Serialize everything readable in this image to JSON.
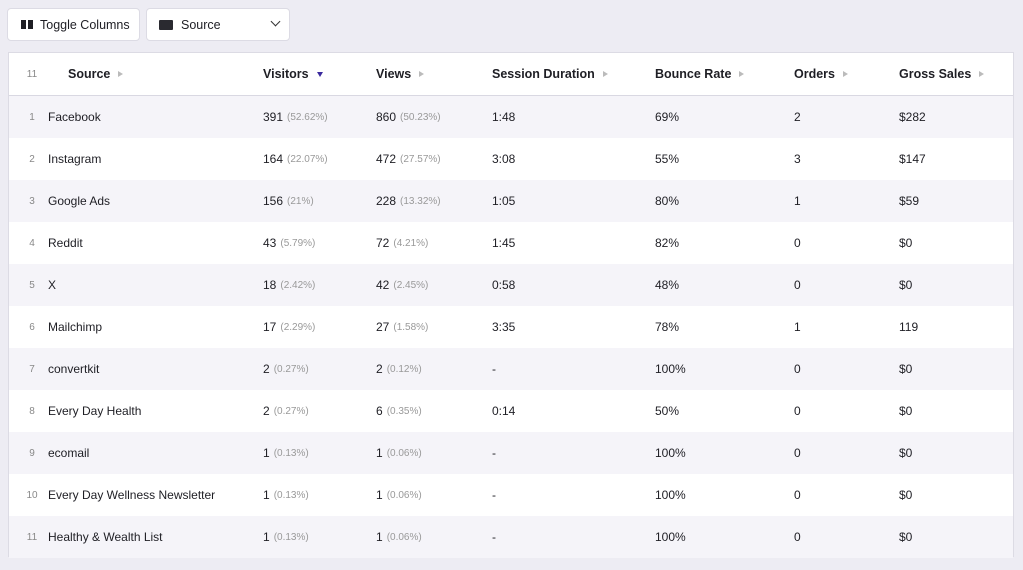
{
  "toolbar": {
    "toggle_columns_label": "Toggle Columns",
    "source_select_value": "Source"
  },
  "table": {
    "row_count": "11",
    "columns": [
      {
        "label": "Source",
        "sort": "none"
      },
      {
        "label": "Visitors",
        "sort": "desc"
      },
      {
        "label": "Views",
        "sort": "none"
      },
      {
        "label": "Session Duration",
        "sort": "none"
      },
      {
        "label": "Bounce Rate",
        "sort": "none"
      },
      {
        "label": "Orders",
        "sort": "none"
      },
      {
        "label": "Gross Sales",
        "sort": "none"
      }
    ],
    "rows": [
      {
        "index": "1",
        "source": "Facebook",
        "visitors": "391",
        "visitors_pct": "(52.62%)",
        "views": "860",
        "views_pct": "(50.23%)",
        "session": "1:48",
        "bounce": "69%",
        "orders": "2",
        "gross": "$282"
      },
      {
        "index": "2",
        "source": "Instagram",
        "visitors": "164",
        "visitors_pct": "(22.07%)",
        "views": "472",
        "views_pct": "(27.57%)",
        "session": "3:08",
        "bounce": "55%",
        "orders": "3",
        "gross": "$147"
      },
      {
        "index": "3",
        "source": "Google Ads",
        "visitors": "156",
        "visitors_pct": "(21%)",
        "views": "228",
        "views_pct": "(13.32%)",
        "session": "1:05",
        "bounce": "80%",
        "orders": "1",
        "gross": "$59"
      },
      {
        "index": "4",
        "source": "Reddit",
        "visitors": "43",
        "visitors_pct": "(5.79%)",
        "views": "72",
        "views_pct": "(4.21%)",
        "session": "1:45",
        "bounce": "82%",
        "orders": "0",
        "gross": "$0"
      },
      {
        "index": "5",
        "source": "X",
        "visitors": "18",
        "visitors_pct": "(2.42%)",
        "views": "42",
        "views_pct": "(2.45%)",
        "session": "0:58",
        "bounce": "48%",
        "orders": "0",
        "gross": "$0"
      },
      {
        "index": "6",
        "source": "Mailchimp",
        "visitors": "17",
        "visitors_pct": "(2.29%)",
        "views": "27",
        "views_pct": "(1.58%)",
        "session": "3:35",
        "bounce": "78%",
        "orders": "1",
        "gross": "119"
      },
      {
        "index": "7",
        "source": "convertkit",
        "visitors": "2",
        "visitors_pct": "(0.27%)",
        "views": "2",
        "views_pct": "(0.12%)",
        "session": "-",
        "bounce": "100%",
        "orders": "0",
        "gross": "$0"
      },
      {
        "index": "8",
        "source": "Every Day Health",
        "visitors": "2",
        "visitors_pct": "(0.27%)",
        "views": "6",
        "views_pct": "(0.35%)",
        "session": "0:14",
        "bounce": "50%",
        "orders": "0",
        "gross": "$0"
      },
      {
        "index": "9",
        "source": "ecomail",
        "visitors": "1",
        "visitors_pct": "(0.13%)",
        "views": "1",
        "views_pct": "(0.06%)",
        "session": "-",
        "bounce": "100%",
        "orders": "0",
        "gross": "$0"
      },
      {
        "index": "10",
        "source": "Every Day Wellness Newsletter",
        "visitors": "1",
        "visitors_pct": "(0.13%)",
        "views": "1",
        "views_pct": "(0.06%)",
        "session": "-",
        "bounce": "100%",
        "orders": "0",
        "gross": "$0"
      },
      {
        "index": "11",
        "source": "Healthy & Wealth List",
        "visitors": "1",
        "visitors_pct": "(0.13%)",
        "views": "1",
        "views_pct": "(0.06%)",
        "session": "-",
        "bounce": "100%",
        "orders": "0",
        "gross": "$0"
      }
    ]
  },
  "colors": {
    "sort_active": "#3b2a9e",
    "row_alt": "#f5f4f9",
    "background": "#edecf3"
  }
}
